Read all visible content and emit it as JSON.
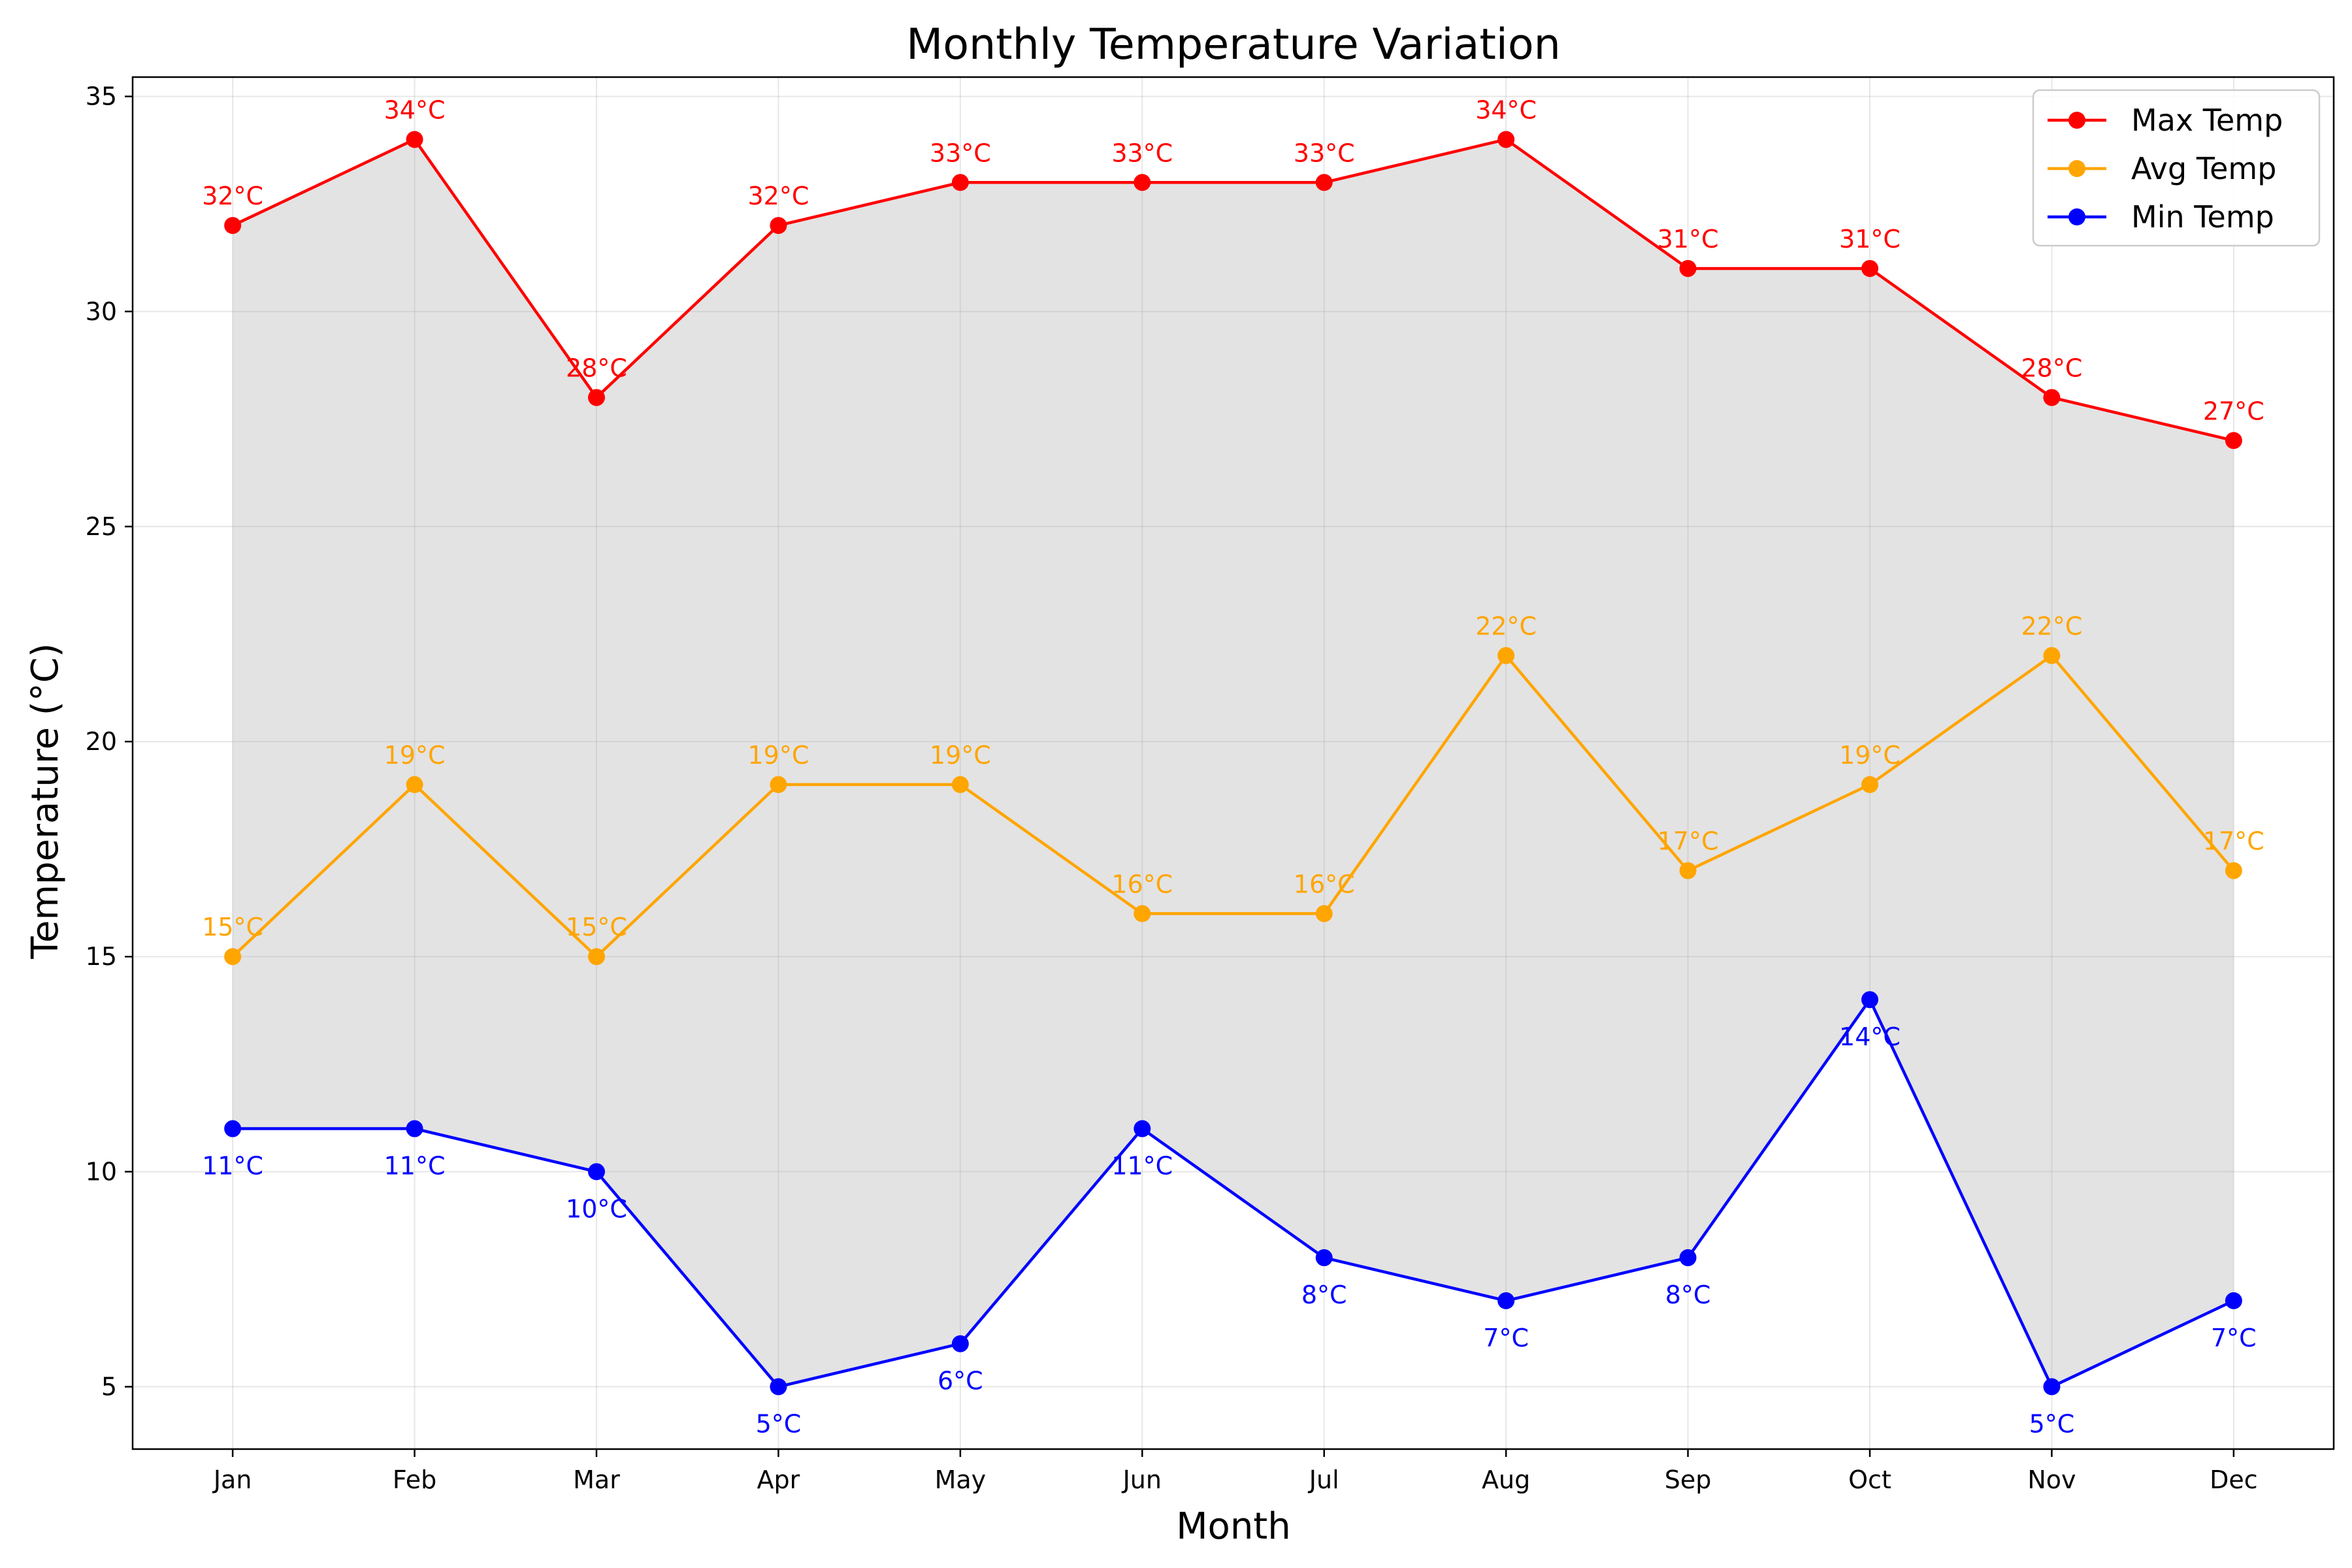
{
  "chart_data": {
    "type": "line",
    "title": "Monthly Temperature Variation",
    "xlabel": "Month",
    "ylabel": "Temperature (°C)",
    "categories": [
      "Jan",
      "Feb",
      "Mar",
      "Apr",
      "May",
      "Jun",
      "Jul",
      "Aug",
      "Sep",
      "Oct",
      "Nov",
      "Dec"
    ],
    "series": [
      {
        "name": "Max Temp",
        "color": "#ff0000",
        "values": [
          32,
          34,
          28,
          32,
          33,
          33,
          33,
          34,
          31,
          31,
          28,
          27
        ],
        "label_position": "above"
      },
      {
        "name": "Avg Temp",
        "color": "#ffa500",
        "values": [
          15,
          19,
          15,
          19,
          19,
          16,
          16,
          22,
          17,
          19,
          22,
          17
        ],
        "label_position": "above"
      },
      {
        "name": "Min Temp",
        "color": "#0000ff",
        "values": [
          11,
          11,
          10,
          5,
          6,
          11,
          8,
          7,
          8,
          14,
          5,
          7
        ],
        "label_position": "below"
      }
    ],
    "data_label_suffix": "°C",
    "fill_between": {
      "upper": "Max Temp",
      "lower": "Min Temp",
      "color": "#e3e3e3"
    },
    "yticks": [
      5,
      10,
      15,
      20,
      25,
      30,
      35
    ],
    "ylim": [
      3.55,
      35.45
    ],
    "grid": true,
    "legend": "top-right"
  }
}
